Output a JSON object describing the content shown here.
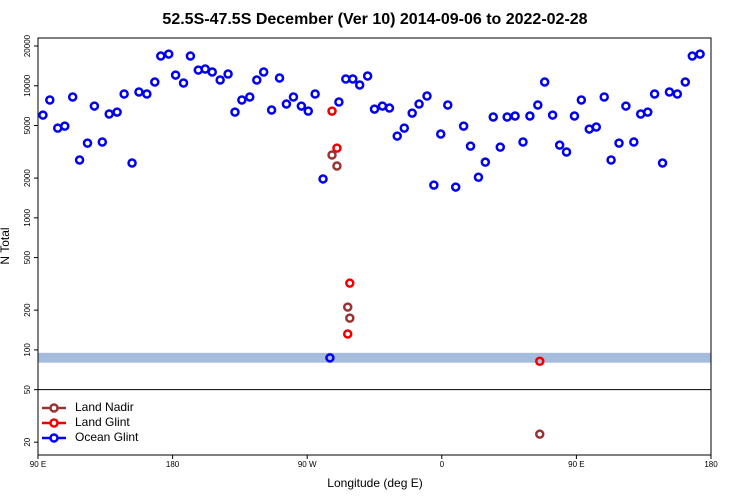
{
  "chart_data": {
    "type": "scatter",
    "title": "52.5S-47.5S December (Ver 10)   2014-09-06 to 2022-02-28",
    "x_label": "Longitude (deg E)",
    "y_label": "N Total",
    "xlim": [
      90,
      540
    ],
    "xticks": [
      {
        "value": 90,
        "label": "90 E"
      },
      {
        "value": 180,
        "label": "180"
      },
      {
        "value": 270,
        "label": "90 W"
      },
      {
        "value": 360,
        "label": "0"
      },
      {
        "value": 450,
        "label": "90 E"
      },
      {
        "value": 540,
        "label": "180"
      }
    ],
    "ylim": [
      16,
      23000
    ],
    "yticks": [
      20,
      50,
      100,
      200,
      500,
      1000,
      2000,
      5000,
      10000,
      20000
    ],
    "log_y": true,
    "hline": 50,
    "band": {
      "ymin": 80,
      "ymax": 95,
      "color": "#a6bcdc"
    },
    "legend": "lower left",
    "series": [
      {
        "name": "Ocean Glint",
        "color": "#0000ee",
        "x": [
          93.3,
          97.9,
          103.2,
          107.9,
          113.2,
          117.8,
          123.1,
          127.7,
          133.0,
          137.6,
          142.9,
          147.6,
          152.9,
          157.5,
          162.8,
          168.1,
          172.1,
          177.4,
          182.0,
          187.3,
          191.9,
          197.2,
          201.8,
          206.5,
          211.8,
          217.1,
          221.7,
          226.3,
          231.6,
          236.3,
          240.9,
          246.2,
          251.5,
          256.1,
          260.8,
          266.1,
          270.7,
          275.3,
          280.6,
          291.2,
          295.8,
          300.5,
          305.1,
          310.4,
          315.0,
          320.3,
          325.0,
          330.2,
          334.9,
          340.2,
          344.8,
          350.1,
          354.7,
          359.3,
          364.0,
          369.3,
          374.6,
          379.2,
          384.5,
          389.1,
          394.4,
          399.1,
          403.7,
          409.0,
          414.3,
          418.9,
          424.2,
          428.8,
          434.1,
          438.8,
          443.4,
          448.7,
          453.3,
          458.6,
          463.3,
          468.6,
          473.2,
          478.5,
          483.1,
          488.4,
          493.0,
          497.7,
          502.3,
          507.6,
          512.2,
          517.5,
          522.8,
          527.5,
          532.7,
          285.2
        ],
        "values": [
          6000,
          7800,
          4780,
          4950,
          8220,
          2740,
          3680,
          7020,
          3750,
          6110,
          6320,
          8660,
          2600,
          8970,
          8660,
          10670,
          16790,
          17380,
          12050,
          10490,
          16790,
          13150,
          13390,
          12710,
          11050,
          12270,
          6320,
          7800,
          8220,
          11050,
          12710,
          6550,
          11450,
          7270,
          8220,
          7020,
          6430,
          8660,
          1970,
          7530,
          11250,
          11250,
          10140,
          11850,
          6660,
          7020,
          6780,
          4160,
          4780,
          6210,
          7270,
          8360,
          1770,
          4310,
          7150,
          1710,
          4950,
          3490,
          2030,
          2640,
          5800,
          3430,
          5800,
          5900,
          3750,
          5900,
          7150,
          10670,
          6000,
          3550,
          3150,
          5900,
          7800,
          4700,
          4870,
          8220,
          2740,
          3680,
          7020,
          3750,
          6110,
          6320,
          8660,
          2600,
          8970,
          8660,
          10670,
          16790,
          17380,
          87
        ]
      },
      {
        "name": "Land Glint",
        "color": "#ee0000",
        "x": [
          286.6,
          289.9,
          298.5,
          297.1,
          425.5
        ],
        "values": [
          6430,
          3370,
          320,
          132,
          82
        ]
      },
      {
        "name": "Land Nadir",
        "color": "#993333",
        "x": [
          286.6,
          289.9,
          297.1,
          298.5,
          425.5
        ],
        "values": [
          2990,
          2470,
          211,
          174,
          23
        ]
      }
    ]
  }
}
